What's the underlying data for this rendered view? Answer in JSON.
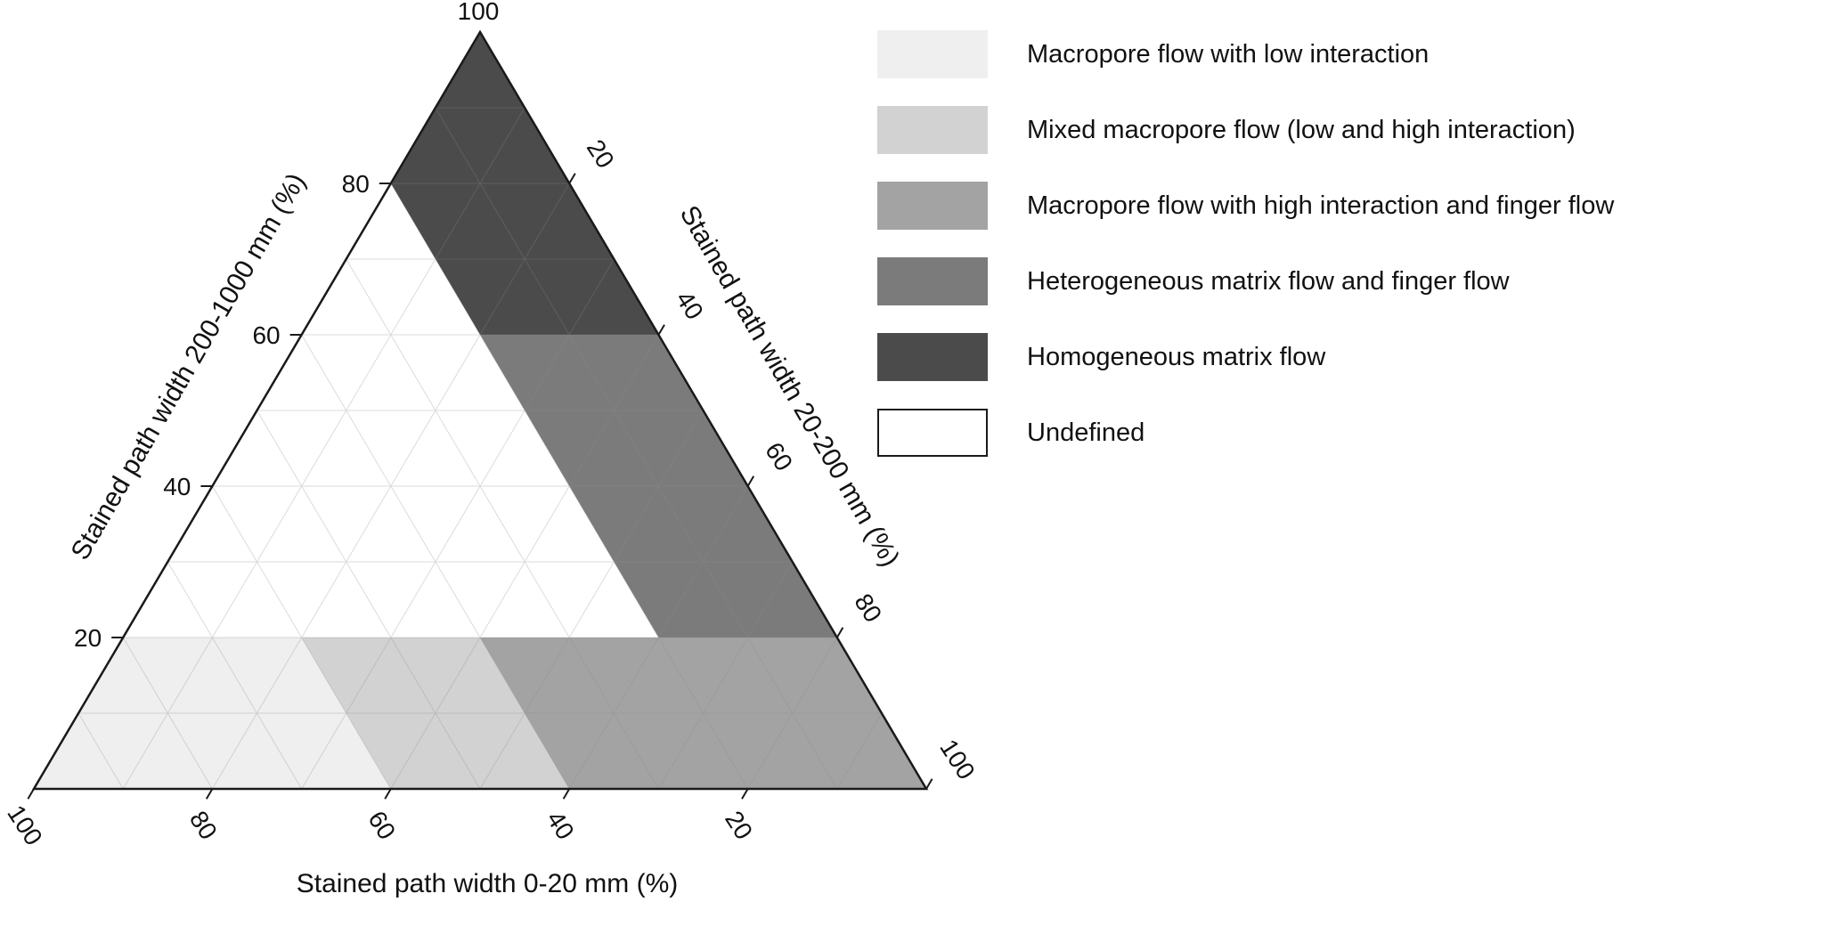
{
  "background": "#ffffff",
  "chart_data": {
    "type": "ternary",
    "title": "",
    "grid_step": 10,
    "grid_color": "#8c8c8c",
    "grid_opacity": 0.3,
    "border_color": "#1a1a1a",
    "axes": {
      "bottom": {
        "label": "Stained path width 0-20 mm (%)",
        "ticks": [
          100,
          80,
          60,
          40,
          20
        ]
      },
      "right": {
        "label": "Stained path width 20-200 mm (%)",
        "ticks": [
          20,
          40,
          60,
          80,
          100
        ]
      },
      "left": {
        "label": "Stained path width 200-1000 mm (%)",
        "ticks": [
          100,
          80,
          60,
          40,
          20
        ]
      }
    },
    "regions": [
      {
        "name": "Macropore flow with low interaction",
        "color": "#efefef",
        "vertices_abc": [
          [
            100,
            0,
            0
          ],
          [
            80,
            0,
            20
          ],
          [
            60,
            20,
            20
          ],
          [
            60,
            40,
            0
          ]
        ]
      },
      {
        "name": "Mixed macropore flow (low and high interaction)",
        "color": "#d2d2d2",
        "vertices_abc": [
          [
            60,
            40,
            0
          ],
          [
            60,
            20,
            20
          ],
          [
            40,
            40,
            20
          ],
          [
            40,
            60,
            0
          ]
        ]
      },
      {
        "name": "Macropore flow with high interaction and finger flow",
        "color": "#a3a3a3",
        "vertices_abc": [
          [
            40,
            60,
            0
          ],
          [
            40,
            40,
            20
          ],
          [
            0,
            80,
            20
          ],
          [
            0,
            100,
            0
          ]
        ]
      },
      {
        "name": "Heterogeneous matrix flow and finger flow",
        "color": "#7b7b7b",
        "vertices_abc": [
          [
            20,
            20,
            60
          ],
          [
            0,
            40,
            60
          ],
          [
            0,
            80,
            20
          ],
          [
            20,
            60,
            20
          ]
        ]
      },
      {
        "name": "Homogeneous matrix flow",
        "color": "#4b4b4b",
        "vertices_abc": [
          [
            0,
            0,
            100
          ],
          [
            20,
            0,
            80
          ],
          [
            20,
            20,
            60
          ],
          [
            0,
            40,
            60
          ]
        ]
      },
      {
        "name": "Undefined",
        "color": "#ffffff",
        "vertices_abc": [
          [
            20,
            0,
            80
          ],
          [
            80,
            0,
            20
          ],
          [
            20,
            60,
            20
          ]
        ]
      }
    ],
    "legend": [
      {
        "label": "Macropore flow with low interaction",
        "color": "#efefef",
        "bordered": false
      },
      {
        "label": "Mixed macropore flow (low and high interaction)",
        "color": "#d2d2d2",
        "bordered": false
      },
      {
        "label": "Macropore flow with high interaction and finger flow",
        "color": "#a3a3a3",
        "bordered": false
      },
      {
        "label": "Heterogeneous matrix flow and finger flow",
        "color": "#7b7b7b",
        "bordered": false
      },
      {
        "label": "Homogeneous matrix flow",
        "color": "#4b4b4b",
        "bordered": false
      },
      {
        "label": "Undefined",
        "color": "#ffffff",
        "bordered": true
      }
    ]
  }
}
